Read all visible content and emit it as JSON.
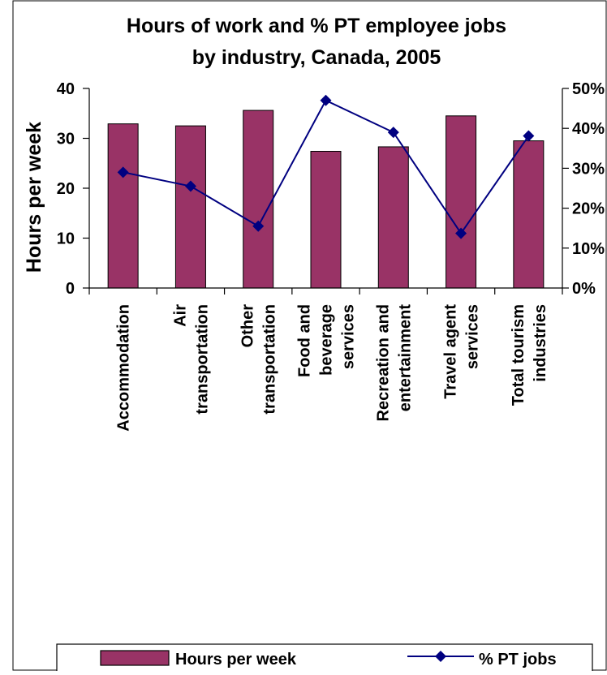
{
  "chart_data": {
    "type": "bar",
    "title": "Hours of work and % PT employee jobs by industry, Canada, 2005",
    "title_lines": [
      "Hours of work and % PT employee jobs",
      "by industry, Canada, 2005"
    ],
    "ylabel": "Hours per week",
    "y2label": "",
    "categories": [
      [
        "Accommodation"
      ],
      [
        "Air",
        "transportation"
      ],
      [
        "Other",
        "transportation"
      ],
      [
        "Food and",
        "beverage",
        "services"
      ],
      [
        "Recreation and",
        "entertainment"
      ],
      [
        "Travel agent",
        "services"
      ],
      [
        "Total tourism",
        "industries"
      ]
    ],
    "series": [
      {
        "name": "Hours per week",
        "kind": "bar",
        "axis": "left",
        "color": "#993366",
        "values": [
          32.9,
          32.5,
          35.6,
          27.4,
          28.3,
          34.5,
          29.5
        ]
      },
      {
        "name": "% PT jobs",
        "kind": "line",
        "axis": "right",
        "color": "#000080",
        "values": [
          29.0,
          25.5,
          15.5,
          47.0,
          39.0,
          13.7,
          38.1
        ]
      }
    ],
    "ylim": [
      0,
      40
    ],
    "yticks": [
      "0",
      "10",
      "20",
      "30",
      "40"
    ],
    "y2lim": [
      0,
      50
    ],
    "y2ticks": [
      "0%",
      "10%",
      "20%",
      "30%",
      "40%",
      "50%"
    ],
    "grid": false,
    "legend": "bottom"
  }
}
